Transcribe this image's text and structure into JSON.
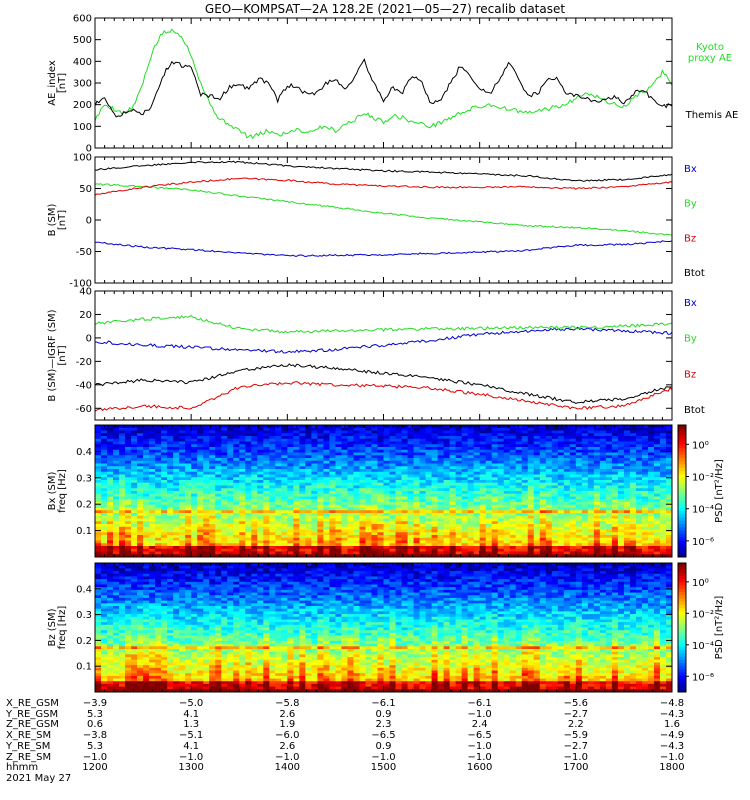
{
  "title": "GEO—KOMPSAT—2A 128.2E (2021—05—27) recalib dataset",
  "colors": {
    "green": "#22dd22",
    "black": "#000000",
    "red": "#dd0000",
    "blue": "#0000cc"
  },
  "chart_data": [
    {
      "type": "line",
      "ylabel": "AE_index [nT]",
      "ylabel_lines": [
        "AE_index",
        "[nT]"
      ],
      "xlim": [
        1200,
        1800
      ],
      "ylim": [
        0,
        600
      ],
      "yticks": [
        0,
        100,
        200,
        300,
        400,
        500,
        600
      ],
      "grid": false,
      "series": [
        {
          "name": "Kyoto proxy AE",
          "name_lines": [
            "Kyoto",
            "proxy AE"
          ],
          "color": "#22dd22",
          "x": [
            1200,
            1210,
            1220,
            1230,
            1240,
            1250,
            1260,
            1270,
            1280,
            1290,
            1300,
            1310,
            1320,
            1330,
            1340,
            1350,
            1360,
            1370,
            1380,
            1390,
            1400,
            1410,
            1420,
            1430,
            1440,
            1450,
            1460,
            1470,
            1480,
            1490,
            1500,
            1510,
            1520,
            1530,
            1540,
            1550,
            1560,
            1570,
            1580,
            1590,
            1600,
            1610,
            1620,
            1630,
            1640,
            1650,
            1660,
            1670,
            1680,
            1690,
            1700,
            1710,
            1720,
            1730,
            1740,
            1750,
            1760,
            1770,
            1780,
            1790,
            1800
          ],
          "y": [
            130,
            200,
            180,
            160,
            190,
            300,
            450,
            530,
            540,
            520,
            430,
            300,
            200,
            130,
            110,
            80,
            50,
            60,
            80,
            60,
            70,
            90,
            70,
            90,
            100,
            80,
            110,
            130,
            160,
            140,
            120,
            150,
            140,
            120,
            110,
            100,
            120,
            140,
            160,
            180,
            190,
            200,
            190,
            180,
            170,
            160,
            170,
            180,
            190,
            200,
            230,
            260,
            240,
            220,
            200,
            190,
            230,
            260,
            290,
            350,
            300
          ]
        },
        {
          "name": "Themis AE",
          "name_lines": [
            "Themis AE"
          ],
          "color": "#000000",
          "x": [
            1200,
            1210,
            1220,
            1230,
            1240,
            1250,
            1260,
            1270,
            1280,
            1290,
            1300,
            1310,
            1320,
            1330,
            1340,
            1350,
            1360,
            1370,
            1380,
            1390,
            1400,
            1410,
            1420,
            1430,
            1440,
            1450,
            1460,
            1470,
            1480,
            1490,
            1500,
            1510,
            1520,
            1530,
            1540,
            1550,
            1560,
            1570,
            1580,
            1590,
            1600,
            1610,
            1620,
            1630,
            1640,
            1650,
            1660,
            1670,
            1680,
            1690,
            1700,
            1710,
            1720,
            1730,
            1740,
            1750,
            1760,
            1770,
            1780,
            1790,
            1800
          ],
          "y": [
            200,
            240,
            150,
            160,
            170,
            160,
            200,
            330,
            400,
            380,
            370,
            250,
            240,
            230,
            280,
            300,
            270,
            320,
            300,
            220,
            290,
            280,
            250,
            250,
            300,
            320,
            270,
            330,
            400,
            300,
            220,
            280,
            260,
            330,
            300,
            200,
            230,
            300,
            380,
            340,
            270,
            250,
            310,
            400,
            330,
            240,
            250,
            310,
            330,
            250,
            240,
            230,
            210,
            220,
            240,
            200,
            250,
            270,
            220,
            190,
            200
          ]
        }
      ]
    },
    {
      "type": "line",
      "ylabel": "B (SM) [nT]",
      "ylabel_lines": [
        "B (SM)",
        "[nT]"
      ],
      "xlim": [
        1200,
        1800
      ],
      "ylim": [
        -100,
        100
      ],
      "yticks": [
        -100,
        -50,
        0,
        50,
        100
      ],
      "grid": false,
      "series": [
        {
          "name": "Bx",
          "color": "#0000cc",
          "x": [
            1200,
            1250,
            1300,
            1350,
            1400,
            1450,
            1500,
            1550,
            1600,
            1650,
            1700,
            1750,
            1800
          ],
          "y": [
            -35,
            -43,
            -47,
            -52,
            -57,
            -56,
            -55,
            -53,
            -51,
            -48,
            -40,
            -39,
            -33
          ]
        },
        {
          "name": "By",
          "color": "#22dd22",
          "x": [
            1200,
            1250,
            1300,
            1350,
            1400,
            1450,
            1500,
            1550,
            1600,
            1650,
            1700,
            1750,
            1800
          ],
          "y": [
            57,
            53,
            48,
            38,
            29,
            20,
            11,
            3,
            -3,
            -9,
            -12,
            -17,
            -24
          ]
        },
        {
          "name": "Bz",
          "color": "#dd0000",
          "x": [
            1200,
            1250,
            1300,
            1350,
            1400,
            1450,
            1500,
            1550,
            1600,
            1650,
            1700,
            1750,
            1800
          ],
          "y": [
            40,
            52,
            60,
            66,
            63,
            57,
            54,
            52,
            52,
            53,
            50,
            53,
            60
          ]
        },
        {
          "name": "Btot",
          "color": "#000000",
          "x": [
            1200,
            1250,
            1300,
            1350,
            1400,
            1450,
            1500,
            1550,
            1600,
            1650,
            1700,
            1750,
            1800
          ],
          "y": [
            80,
            86,
            92,
            92,
            86,
            82,
            78,
            76,
            73,
            70,
            62,
            64,
            72
          ]
        }
      ]
    },
    {
      "type": "line",
      "ylabel": "B (SM)—IGRF (SM) [nT]",
      "ylabel_lines": [
        "B (SM)—IGRF (SM)",
        "[nT]"
      ],
      "xlim": [
        1200,
        1800
      ],
      "ylim": [
        -70,
        40
      ],
      "yticks": [
        -60,
        -40,
        -20,
        0,
        20,
        40
      ],
      "grid": false,
      "series": [
        {
          "name": "Bx",
          "color": "#0000cc",
          "x": [
            1200,
            1250,
            1300,
            1350,
            1400,
            1450,
            1500,
            1550,
            1600,
            1650,
            1700,
            1750,
            1800
          ],
          "y": [
            -3,
            -6,
            -8,
            -10,
            -12,
            -10,
            -6,
            -2,
            3,
            6,
            8,
            6,
            4
          ]
        },
        {
          "name": "By",
          "color": "#22dd22",
          "x": [
            1200,
            1250,
            1300,
            1350,
            1400,
            1450,
            1500,
            1550,
            1600,
            1650,
            1700,
            1750,
            1800
          ],
          "y": [
            12,
            16,
            18,
            8,
            5,
            6,
            7,
            8,
            8,
            9,
            9,
            10,
            12
          ]
        },
        {
          "name": "Bz",
          "color": "#dd0000",
          "x": [
            1200,
            1250,
            1300,
            1350,
            1400,
            1450,
            1500,
            1550,
            1600,
            1650,
            1700,
            1750,
            1800
          ],
          "y": [
            -62,
            -58,
            -60,
            -42,
            -38,
            -40,
            -41,
            -43,
            -48,
            -54,
            -60,
            -58,
            -43
          ]
        },
        {
          "name": "Btot",
          "color": "#000000",
          "x": [
            1200,
            1250,
            1300,
            1350,
            1400,
            1450,
            1500,
            1550,
            1600,
            1650,
            1700,
            1750,
            1800
          ],
          "y": [
            -40,
            -36,
            -38,
            -28,
            -23,
            -26,
            -30,
            -34,
            -40,
            -48,
            -55,
            -52,
            -41
          ]
        }
      ]
    },
    {
      "type": "heatmap",
      "ylabel": "Bx (SM) freq [Hz]",
      "ylabel_lines": [
        "Bx (SM)",
        "freq [Hz]"
      ],
      "xlim": [
        1200,
        1800
      ],
      "ylim": [
        0,
        0.5
      ],
      "yticks": [
        0.1,
        0.2,
        0.3,
        0.4
      ],
      "ytick_labels": [
        "0.1",
        "0.2",
        "0.3",
        "0.4"
      ],
      "colorbar_label": "PSD [nT²/Hz]",
      "colorbar_ticks": [
        "10⁰",
        "10⁻²",
        "10⁻⁴",
        "10⁻⁶"
      ],
      "colorbar_log10": [
        0,
        -2,
        -4,
        -6
      ],
      "colorbar_range_log10": [
        -7,
        1.2
      ],
      "freq_line_hz": 0.17,
      "seed": 11
    },
    {
      "type": "heatmap",
      "ylabel": "Bz (SM) freq [Hz]",
      "ylabel_lines": [
        "Bz (SM)",
        "freq [Hz]"
      ],
      "xlim": [
        1200,
        1800
      ],
      "ylim": [
        0,
        0.5
      ],
      "yticks": [
        0.1,
        0.2,
        0.3,
        0.4
      ],
      "ytick_labels": [
        "0.1",
        "0.2",
        "0.3",
        "0.4"
      ],
      "colorbar_label": "PSD [nT²/Hz]",
      "colorbar_ticks": [
        "10⁰",
        "10⁻²",
        "10⁻⁴",
        "10⁻⁶"
      ],
      "colorbar_log10": [
        0,
        -2,
        -4,
        -6
      ],
      "colorbar_range_log10": [
        -7,
        1.2
      ],
      "freq_line_hz": 0.17,
      "seed": 23
    }
  ],
  "orbit": {
    "times": [
      1200,
      1300,
      1400,
      1500,
      1600,
      1700,
      1800
    ],
    "rows": [
      {
        "label": "X_RE_GSM",
        "values": [
          "−3.9",
          "−5.0",
          "−5.8",
          "−6.1",
          "−6.1",
          "−5.6",
          "−4.8"
        ]
      },
      {
        "label": "Y_RE_GSM",
        "values": [
          "5.3",
          "4.1",
          "2.6",
          "0.9",
          "−1.0",
          "−2.7",
          "−4.3"
        ]
      },
      {
        "label": "Z_RE_GSM",
        "values": [
          "0.6",
          "1.3",
          "1.9",
          "2.3",
          "2.4",
          "2.2",
          "1.6"
        ]
      },
      {
        "label": "X_RE_SM",
        "values": [
          "−3.8",
          "−5.1",
          "−6.0",
          "−6.5",
          "−6.5",
          "−5.9",
          "−4.9"
        ]
      },
      {
        "label": "Y_RE_SM",
        "values": [
          "5.3",
          "4.1",
          "2.6",
          "0.9",
          "−1.0",
          "−2.7",
          "−4.3"
        ]
      },
      {
        "label": "Z_RE_SM",
        "values": [
          "−1.0",
          "−1.0",
          "−1.0",
          "−1.0",
          "−1.0",
          "−1.0",
          "−1.0"
        ]
      },
      {
        "label": "hhmm",
        "values": [
          "1200",
          "1300",
          "1400",
          "1500",
          "1600",
          "1700",
          "1800"
        ]
      }
    ],
    "date": "2021 May 27"
  }
}
